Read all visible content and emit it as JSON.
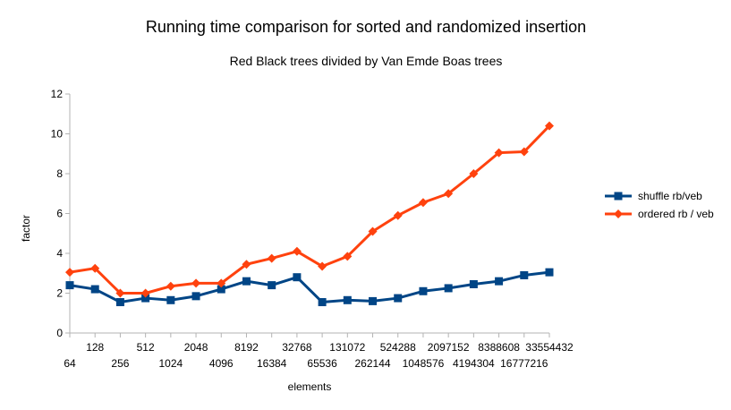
{
  "chart_data": {
    "type": "line",
    "title": "Running time comparison for sorted and randomized insertion",
    "subtitle": "Red Black trees divided by Van Emde Boas trees",
    "xlabel": "elements",
    "ylabel": "factor",
    "ylim": [
      0,
      12
    ],
    "yticks": [
      "0",
      "2",
      "4",
      "6",
      "8",
      "10",
      "12"
    ],
    "grid": false,
    "legend_position": "right",
    "categories": [
      "64",
      "128",
      "256",
      "512",
      "1024",
      "2048",
      "4096",
      "8192",
      "16384",
      "32768",
      "65536",
      "131072",
      "262144",
      "524288",
      "1048576",
      "2097152",
      "4194304",
      "8388608",
      "16777216",
      "33554432"
    ],
    "series": [
      {
        "name": "shuffle rb/veb",
        "color": "#004586",
        "marker": "square",
        "values": [
          2.4,
          2.2,
          1.55,
          1.75,
          1.65,
          1.85,
          2.2,
          2.6,
          2.4,
          2.8,
          1.55,
          1.65,
          1.6,
          1.75,
          2.1,
          2.25,
          2.45,
          2.6,
          2.9,
          3.05
        ]
      },
      {
        "name": "ordered rb / veb",
        "color": "#ff420e",
        "marker": "diamond",
        "values": [
          3.05,
          3.25,
          2.0,
          2.0,
          2.35,
          2.5,
          2.5,
          3.45,
          3.75,
          4.1,
          3.35,
          3.85,
          5.1,
          5.9,
          6.55,
          7.0,
          8.0,
          9.05,
          9.1,
          10.4
        ]
      }
    ]
  }
}
